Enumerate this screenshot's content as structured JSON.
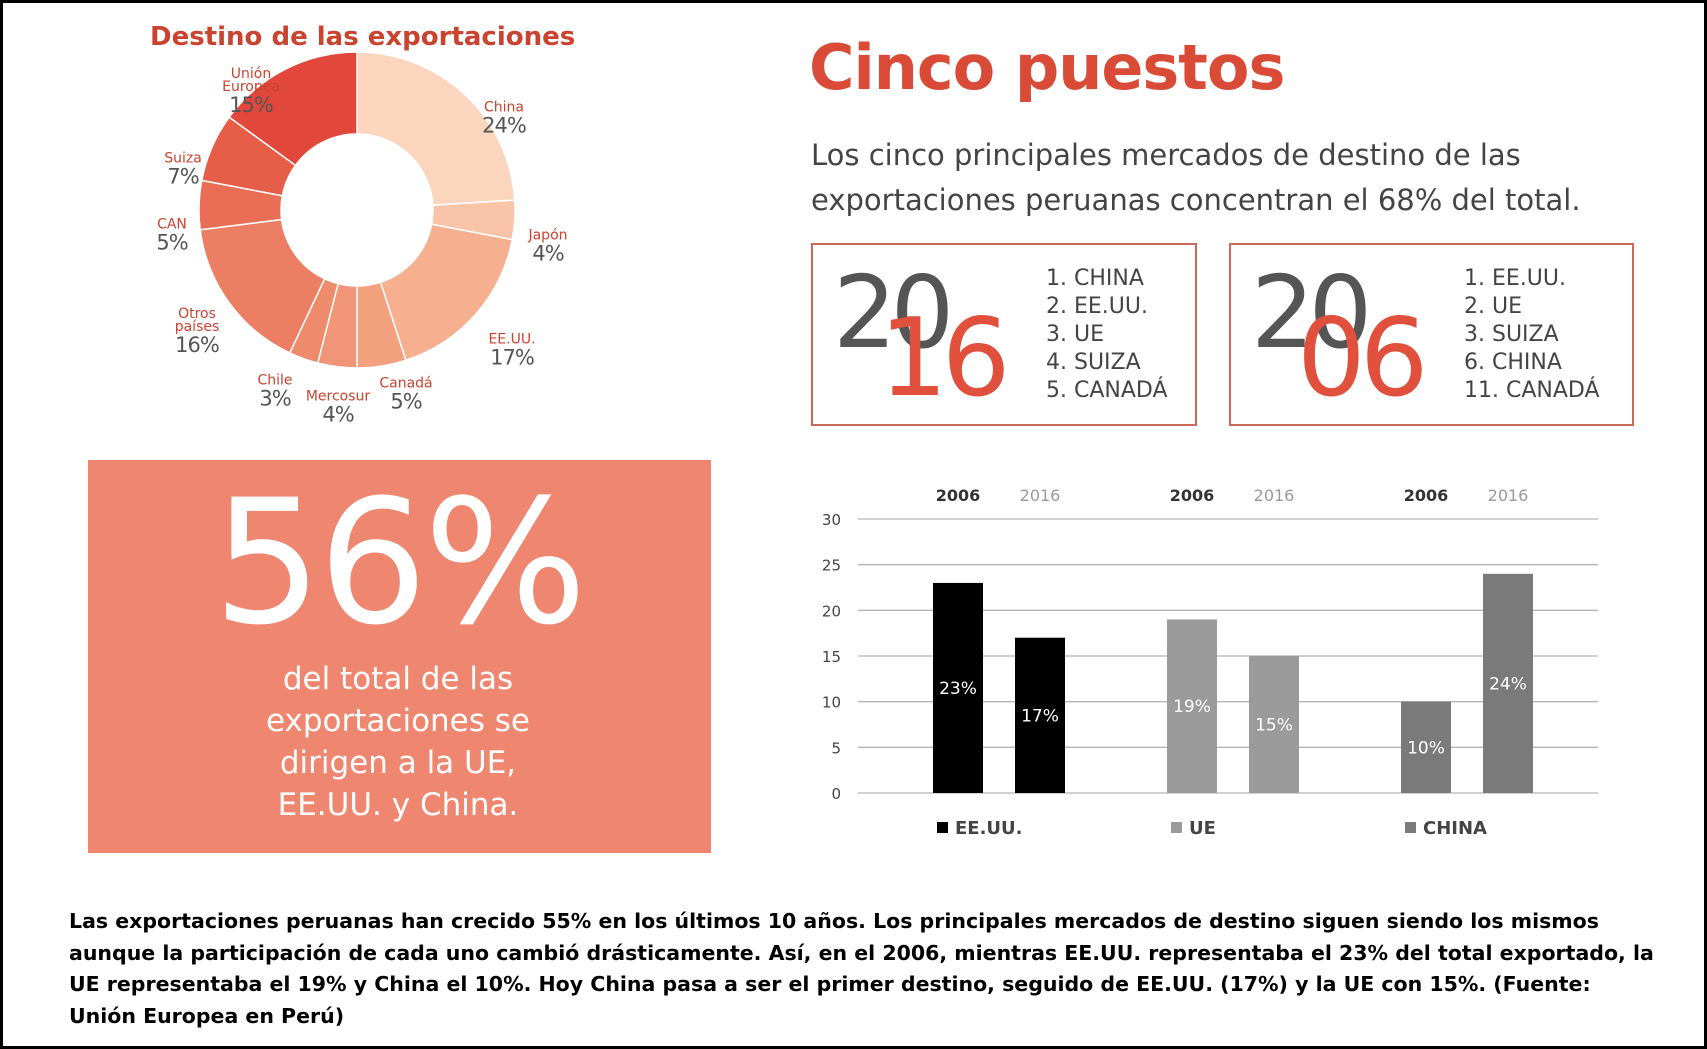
{
  "chart_data": [
    {
      "type": "donut",
      "title": "Destino de las exportaciones",
      "categories": [
        "China",
        "Japón",
        "EE.UU.",
        "Canadá",
        "Mercosur",
        "Chile",
        "Otros países",
        "CAN",
        "Suiza",
        "Unión Europea"
      ],
      "values": [
        24,
        4,
        17,
        5,
        4,
        3,
        16,
        5,
        7,
        15
      ],
      "value_labels": [
        "24%",
        "4%",
        "17%",
        "5%",
        "4%",
        "3%",
        "16%",
        "5%",
        "7%",
        "15%"
      ],
      "colors": [
        "#fcd5bf",
        "#f9c4a8",
        "#f6b090",
        "#f3a07e",
        "#f09578",
        "#ee8b6c",
        "#ec7f63",
        "#e96e55",
        "#e65e48",
        "#e1473a"
      ]
    },
    {
      "type": "bar",
      "categories": [
        "EE.UU.",
        "UE",
        "CHINA"
      ],
      "colors": [
        "#000000",
        "#9b9b9b",
        "#7a7a7a"
      ],
      "series": [
        {
          "name": "2006",
          "values": [
            23,
            19,
            10
          ],
          "value_labels": [
            "23%",
            "19%",
            "10%"
          ]
        },
        {
          "name": "2016",
          "values": [
            17,
            15,
            24
          ],
          "value_labels": [
            "17%",
            "15%",
            "24%"
          ]
        }
      ],
      "ylim": [
        0,
        30
      ],
      "yticks": [
        0,
        5,
        10,
        15,
        20,
        25,
        30
      ],
      "grid": true
    }
  ],
  "header": {
    "title": "Cinco puestos",
    "subtitle": "Los cinco principales mercados de destino de las exportaciones peruanas concentran el 68% del total."
  },
  "rankings": [
    {
      "year_top": "20",
      "year_bottom": "16",
      "items": [
        "1. CHINA",
        "2. EE.UU.",
        "3. UE",
        "4. SUIZA",
        "5. CANADÁ"
      ]
    },
    {
      "year_top": "20",
      "year_bottom": "06",
      "items": [
        "1. EE.UU.",
        "2. UE",
        "3. SUIZA",
        "6. CHINA",
        "11. CANADÁ"
      ]
    }
  ],
  "highlight": {
    "figure": "56%",
    "text": "del total de las exportaciones se dirigen a la UE, EE.UU. y China."
  },
  "footer": "Las exportaciones peruanas han crecido 55% en los últimos 10 años. Los principales mercados de destino siguen siendo los mismos aunque la participación de cada uno cambió drásticamente. Así, en el 2006, mientras EE.UU. representaba el 23% del total exportado, la UE representaba el 19% y China el 10%. Hoy China pasa a ser el primer destino, seguido de EE.UU. (17%) y la UE con 15%. (Fuente: Unión Europea en Perú)"
}
